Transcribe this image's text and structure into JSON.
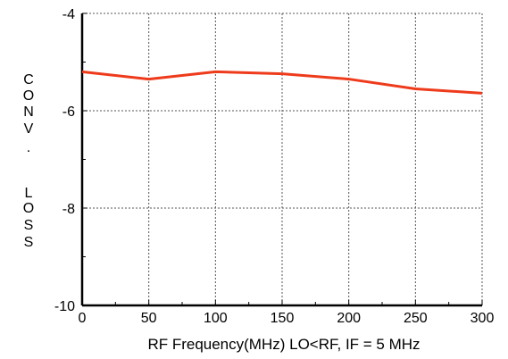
{
  "chart_data": {
    "type": "line",
    "title": "",
    "xlabel": "RF Frequency(MHz) LO<RF, IF = 5 MHz",
    "ylabel": "CONV. LOSS",
    "ylabel_chars": [
      "C",
      "O",
      "N",
      "V",
      ".",
      "L",
      "O",
      "S",
      "S"
    ],
    "xlim": [
      0,
      300
    ],
    "ylim": [
      -10,
      -4
    ],
    "xticks": [
      0,
      50,
      100,
      150,
      200,
      250,
      300
    ],
    "xtick_labels": [
      "0",
      "50",
      "100",
      "150",
      "200",
      "250",
      "300"
    ],
    "yticks": [
      -10,
      -8,
      -6,
      -4
    ],
    "ytick_labels": [
      "-10",
      "-8",
      "-6",
      "-4"
    ],
    "grid": true,
    "series": [
      {
        "color": "#ee3b1b",
        "x": [
          0,
          50,
          100,
          150,
          200,
          250,
          300
        ],
        "y": [
          -5.2,
          -5.35,
          -5.2,
          -5.24,
          -5.35,
          -5.55,
          -5.64
        ]
      }
    ]
  }
}
